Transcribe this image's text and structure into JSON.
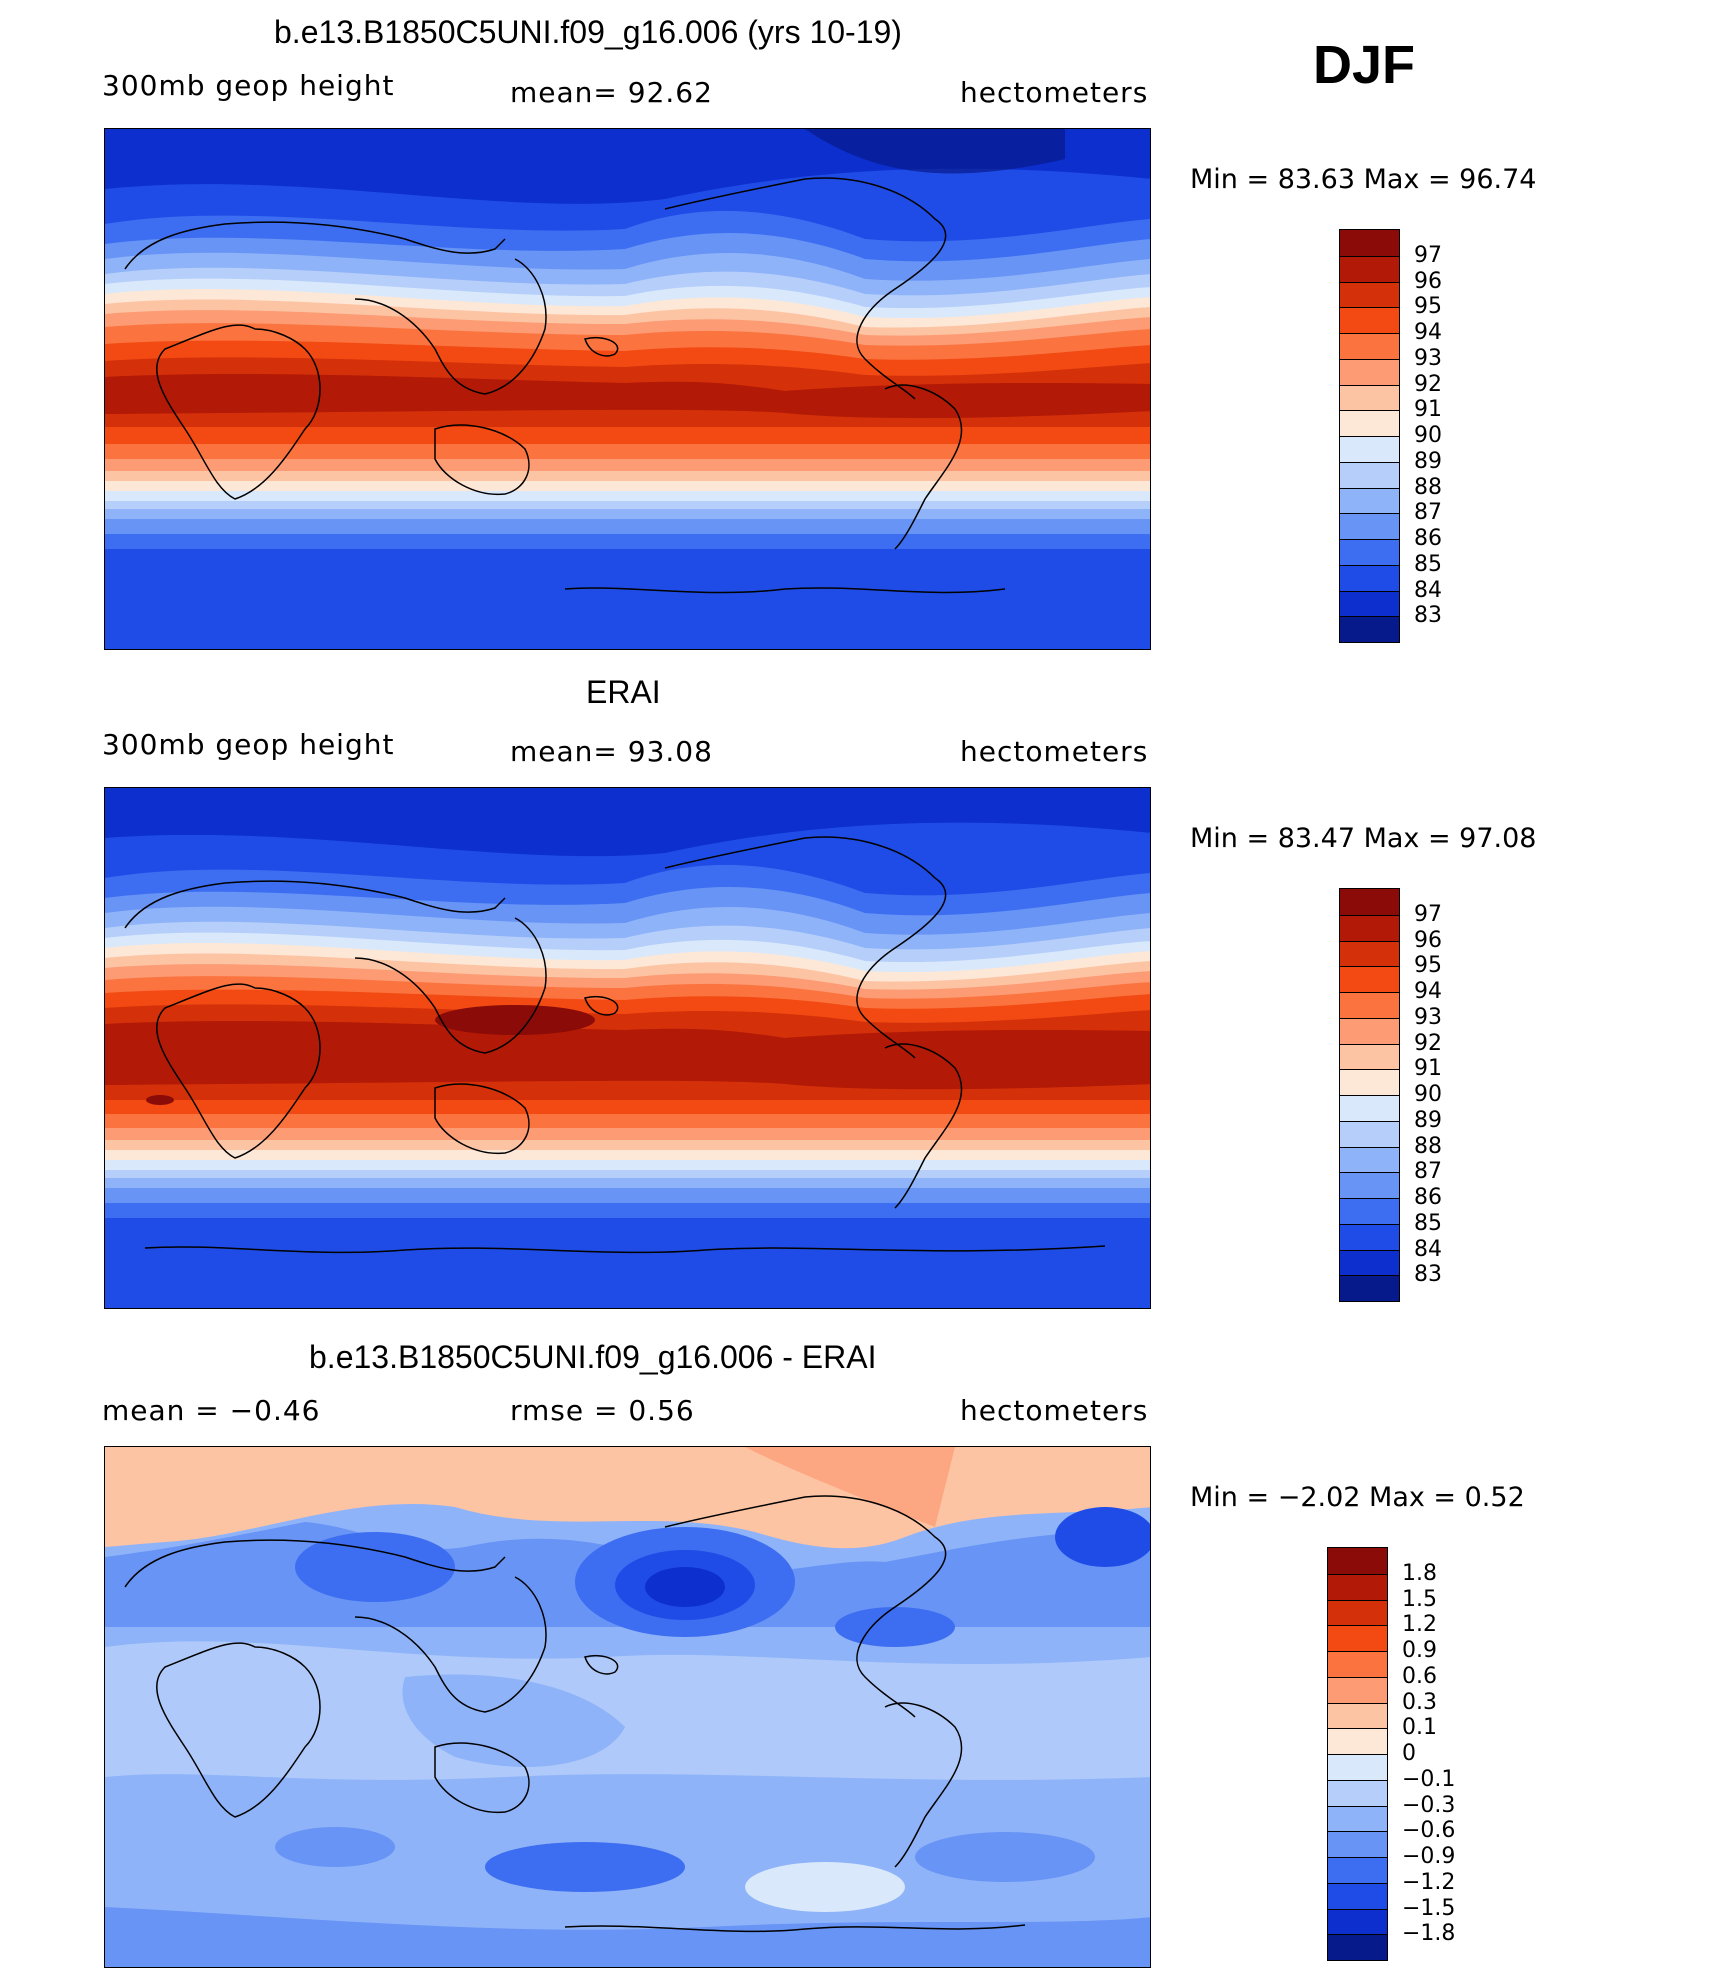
{
  "season": "DJF",
  "panels": [
    {
      "id": "model",
      "title": "b.e13.B1850C5UNI.f09_g16.006 (yrs 10-19)",
      "left_label": "300mb  geop  height",
      "center_label": "mean=   92.62",
      "right_label": "hectometers",
      "minmax": "Min  =    83.63  Max  =    96.74",
      "colorbar": {
        "labels": [
          "97",
          "96",
          "95",
          "94",
          "93",
          "92",
          "91",
          "90",
          "89",
          "88",
          "87",
          "86",
          "85",
          "84",
          "83"
        ],
        "colors": [
          "#8a0b07",
          "#b21906",
          "#d4300a",
          "#f24a12",
          "#fb7440",
          "#fc9b74",
          "#fdc4a4",
          "#fde7d6",
          "#d9e9fb",
          "#b6cffa",
          "#8fb3f8",
          "#6794f5",
          "#3d6ef1",
          "#1f4ce6",
          "#0c2fce",
          "#071a8c"
        ]
      },
      "map_colors": {
        "polar": "#1f4ce6",
        "deep_polar": "#0c2fce",
        "tropics": "#b21906",
        "subtrop": "#d4300a"
      }
    },
    {
      "id": "obs",
      "title": "ERAI",
      "left_label": "300mb  geop  height",
      "center_label": "mean=   93.08",
      "right_label": "hectometers",
      "minmax": "Min  =    83.47  Max  =    97.08",
      "colorbar": {
        "labels": [
          "97",
          "96",
          "95",
          "94",
          "93",
          "92",
          "91",
          "90",
          "89",
          "88",
          "87",
          "86",
          "85",
          "84",
          "83"
        ],
        "colors": [
          "#8a0b07",
          "#b21906",
          "#d4300a",
          "#f24a12",
          "#fb7440",
          "#fc9b74",
          "#fdc4a4",
          "#fde7d6",
          "#d9e9fb",
          "#b6cffa",
          "#8fb3f8",
          "#6794f5",
          "#3d6ef1",
          "#1f4ce6",
          "#0c2fce",
          "#071a8c"
        ]
      },
      "map_colors": {
        "polar": "#1f4ce6",
        "deep_polar": "#0c2fce",
        "tropics": "#b21906",
        "subtrop": "#d4300a"
      }
    },
    {
      "id": "diff",
      "title": "b.e13.B1850C5UNI.f09_g16.006 - ERAI",
      "left_label": "mean  =     −0.46",
      "center_label": "rmse  =     0.56",
      "right_label": "hectometers",
      "minmax": "Min  =    −2.02  Max  =       0.52",
      "colorbar": {
        "labels": [
          "1.8",
          "1.5",
          "1.2",
          "0.9",
          "0.6",
          "0.3",
          "0.1",
          "0",
          "−0.1",
          "−0.3",
          "−0.6",
          "−0.9",
          "−1.2",
          "−1.5",
          "−1.8"
        ],
        "colors": [
          "#8a0b07",
          "#b21906",
          "#d4300a",
          "#f24a12",
          "#fb7440",
          "#fc9b74",
          "#fdc4a4",
          "#fde7d6",
          "#d9e9fb",
          "#b6cffa",
          "#8fb3f8",
          "#6794f5",
          "#3d6ef1",
          "#1f4ce6",
          "#0c2fce",
          "#071a8c"
        ]
      },
      "map_colors": {
        "base": "#8fb3f8",
        "north": "#fdc4a4",
        "low": "#1f4ce6",
        "light": "#b6cffa"
      }
    }
  ]
}
